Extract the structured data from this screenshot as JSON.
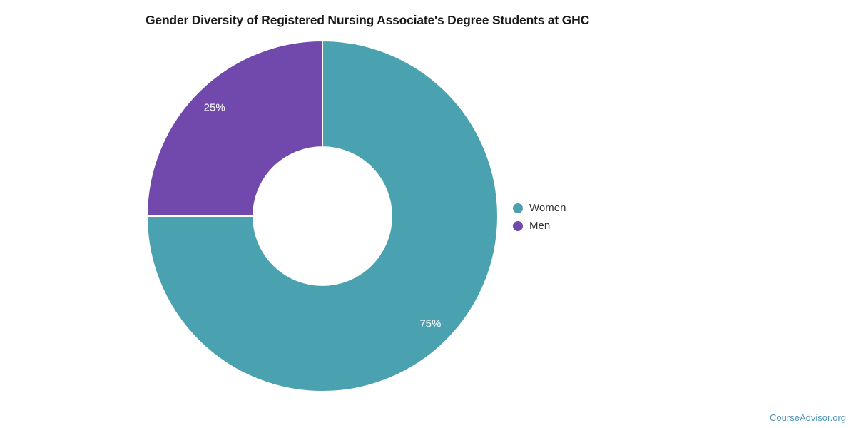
{
  "title": "Gender Diversity of Registered Nursing Associate's Degree Students at GHC",
  "legend": [
    {
      "label": "Women",
      "color": "#4aa2b0"
    },
    {
      "label": "Men",
      "color": "#7149ac"
    }
  ],
  "footer": {
    "brand": "CourseAdvisor.org",
    "color": "#4d94b5"
  },
  "chart_data": {
    "type": "pie",
    "title": "Gender Diversity of Registered Nursing Associate's Degree Students at GHC",
    "categories": [
      "Women",
      "Men"
    ],
    "values": [
      75,
      25
    ],
    "labels": [
      "75%",
      "25%"
    ],
    "colors": [
      "#4aa2b0",
      "#7149ac"
    ],
    "donut": true,
    "inner_radius_ratio": 0.394,
    "label_radius_ratio": 0.87,
    "start_angle_deg": 0,
    "direction": "clockwise",
    "border_color": "#ffffff",
    "slice_label_color": "#ffffff",
    "legend_position": "right",
    "grid": false
  }
}
